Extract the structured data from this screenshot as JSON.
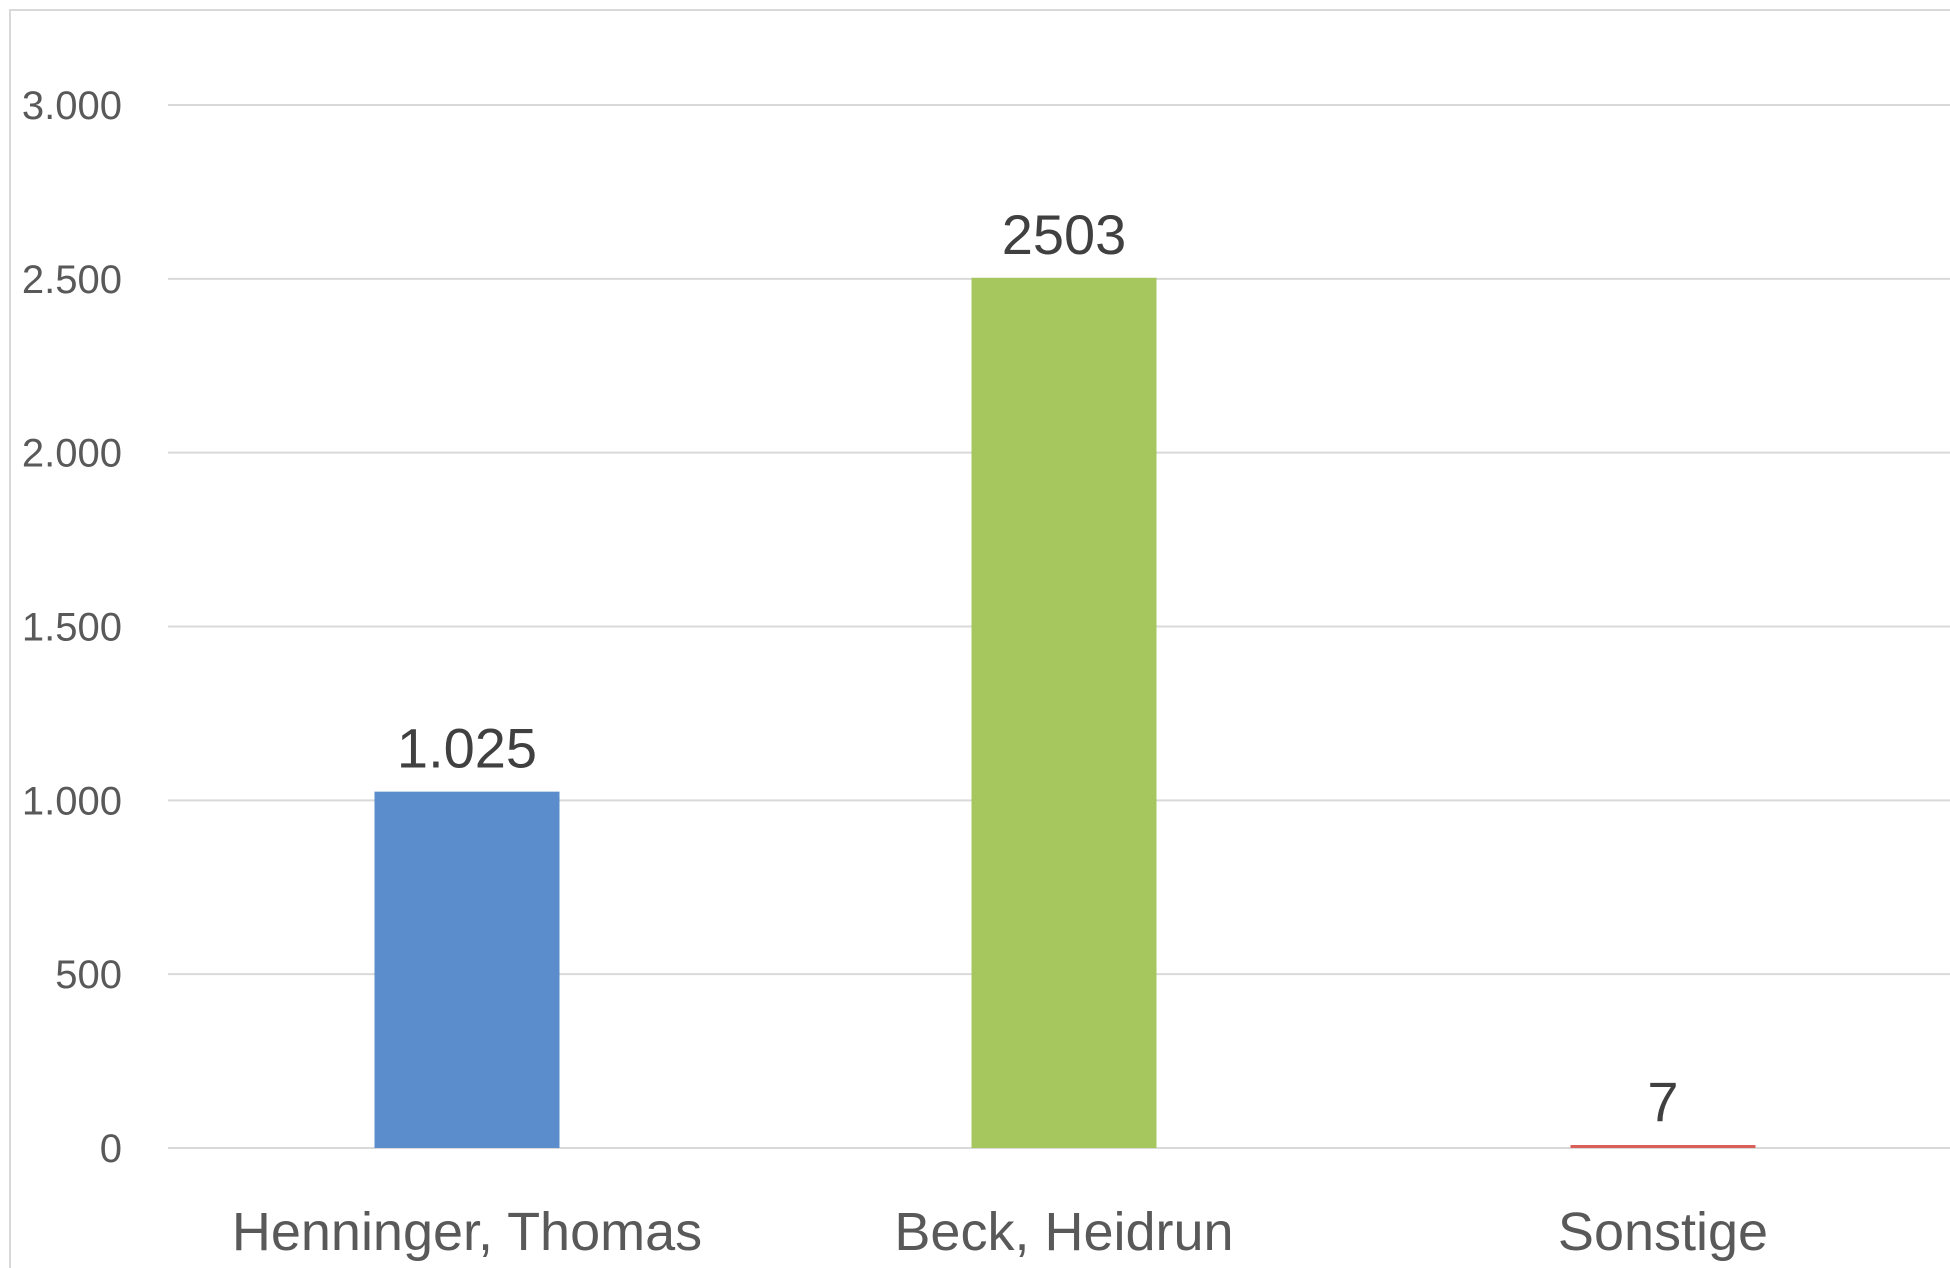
{
  "chart_data": {
    "type": "bar",
    "categories": [
      "Henninger, Thomas",
      "Beck, Heidrun",
      "Sonstige"
    ],
    "values": [
      1025,
      2503,
      7
    ],
    "data_labels": [
      "1.025",
      "2503",
      "7"
    ],
    "colors": [
      "#5b8ccb",
      "#a5c75e",
      "#d9605a"
    ],
    "ylim": [
      0,
      3000
    ],
    "y_ticks": [
      0,
      500,
      1000,
      1500,
      2000,
      2500,
      3000
    ],
    "y_tick_labels": [
      "0",
      "500",
      "1.000",
      "1.500",
      "2.000",
      "2.500",
      "3.000"
    ],
    "grid": true,
    "legend": "none",
    "title": "",
    "xlabel": "",
    "ylabel": ""
  }
}
